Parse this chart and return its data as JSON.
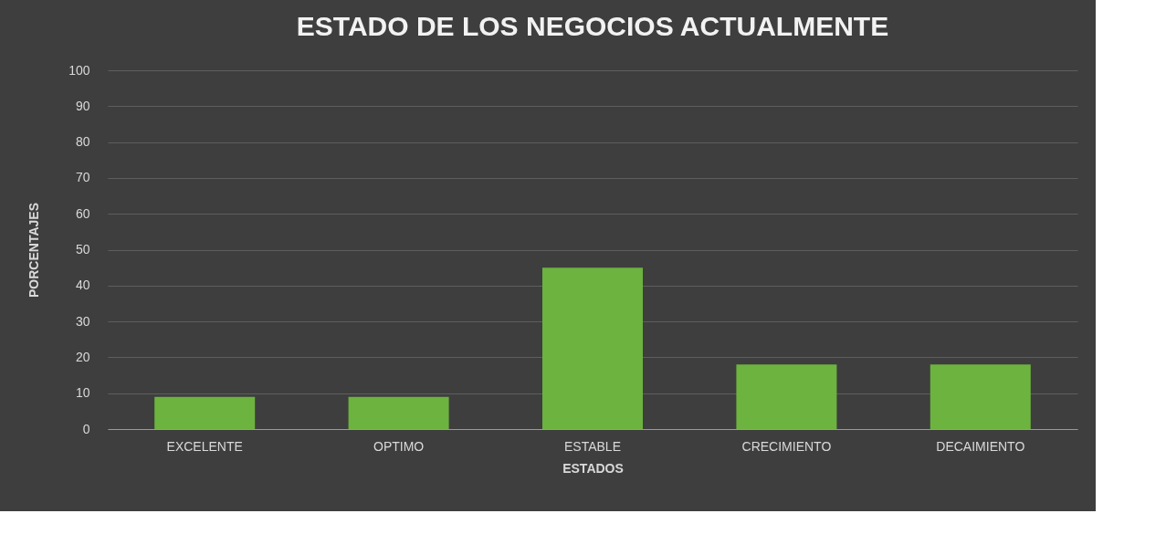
{
  "chart_data": {
    "type": "bar",
    "title": "ESTADO DE LOS NEGOCIOS ACTUALMENTE",
    "xlabel": "ESTADOS",
    "ylabel": "PORCENTAJES",
    "categories": [
      "EXCELENTE",
      "OPTIMO",
      "ESTABLE",
      "CRECIMIENTO",
      "DECAIMIENTO"
    ],
    "values": [
      9,
      9,
      45,
      18,
      18
    ],
    "color": "#6db33f",
    "ylim": [
      0,
      100
    ],
    "yticks": [
      0,
      10,
      20,
      30,
      40,
      50,
      60,
      70,
      80,
      90,
      100
    ],
    "grid": "y"
  }
}
